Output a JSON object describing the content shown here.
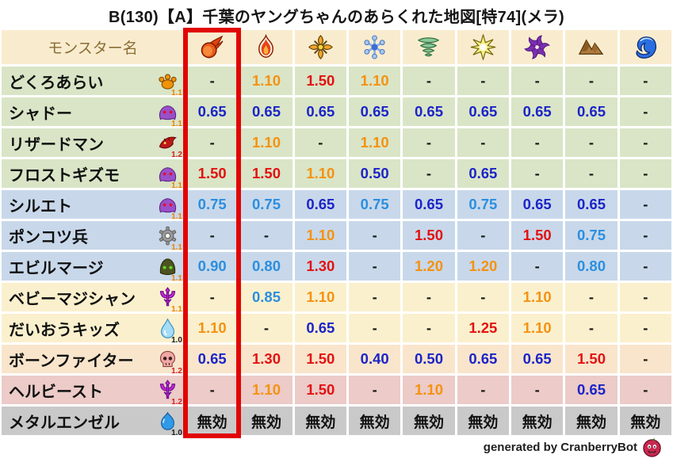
{
  "chart_data": {
    "type": "table",
    "title": "B(130)【A】千葉のヤングちゃんのあらくれた地図[特74](メラ)",
    "name_header": "モンスター名",
    "highlighted_column_index": 0,
    "element_columns": [
      {
        "icon": "fireball-icon",
        "highlighted": true
      },
      {
        "icon": "flame-icon"
      },
      {
        "icon": "burst-icon"
      },
      {
        "icon": "snowflake-icon"
      },
      {
        "icon": "tornado-icon"
      },
      {
        "icon": "spark-icon"
      },
      {
        "icon": "pinwheel-icon"
      },
      {
        "icon": "mountain-icon"
      },
      {
        "icon": "wave-icon"
      }
    ],
    "rows": [
      {
        "name": "どくろあらい",
        "icon": "paw-icon",
        "badge": "1.1",
        "badge_color": "orange",
        "row_color": "green",
        "values": [
          "-",
          "1.10",
          "1.50",
          "1.10",
          "-",
          "-",
          "-",
          "-",
          "-"
        ]
      },
      {
        "name": "シャドー",
        "icon": "ghost-icon",
        "badge": "1.1",
        "badge_color": "orange",
        "row_color": "green",
        "values": [
          "0.65",
          "0.65",
          "0.65",
          "0.65",
          "0.65",
          "0.65",
          "0.65",
          "0.65",
          "-"
        ]
      },
      {
        "name": "リザードマン",
        "icon": "dragon-icon",
        "badge": "1.2",
        "badge_color": "red",
        "row_color": "green",
        "values": [
          "-",
          "1.10",
          "-",
          "1.10",
          "-",
          "-",
          "-",
          "-",
          "-"
        ]
      },
      {
        "name": "フロストギズモ",
        "icon": "ghost-icon",
        "badge": "1.1",
        "badge_color": "orange",
        "row_color": "green",
        "values": [
          "1.50",
          "1.50",
          "1.10",
          "0.50",
          "-",
          "0.65",
          "-",
          "-",
          "-"
        ]
      },
      {
        "name": "シルエト",
        "icon": "ghost-icon",
        "badge": "1.1",
        "badge_color": "orange",
        "row_color": "blue",
        "values": [
          "0.75",
          "0.75",
          "0.65",
          "0.75",
          "0.65",
          "0.75",
          "0.65",
          "0.65",
          "-"
        ]
      },
      {
        "name": "ポンコツ兵",
        "icon": "gear-icon",
        "badge": "1.1",
        "badge_color": "orange",
        "row_color": "blue",
        "values": [
          "-",
          "-",
          "1.10",
          "-",
          "1.50",
          "-",
          "1.50",
          "0.75",
          "-"
        ]
      },
      {
        "name": "エビルマージ",
        "icon": "helmet-icon",
        "badge": "1.1",
        "badge_color": "orange",
        "row_color": "blue",
        "values": [
          "0.90",
          "0.80",
          "1.30",
          "-",
          "1.20",
          "1.20",
          "-",
          "0.80",
          "-"
        ]
      },
      {
        "name": "ベビーマジシャン",
        "icon": "trident-icon",
        "badge": "1.1",
        "badge_color": "orange",
        "row_color": "cream",
        "values": [
          "-",
          "0.85",
          "1.10",
          "-",
          "-",
          "-",
          "1.10",
          "-",
          "-"
        ]
      },
      {
        "name": "だいおうキッズ",
        "icon": "drop-icon",
        "badge": "1.0",
        "badge_color": "black",
        "row_color": "cream",
        "values": [
          "1.10",
          "-",
          "0.65",
          "-",
          "-",
          "1.25",
          "1.10",
          "-",
          "-"
        ]
      },
      {
        "name": "ボーンファイター",
        "icon": "skull-icon",
        "badge": "1.2",
        "badge_color": "red",
        "row_color": "peach",
        "values": [
          "0.65",
          "1.30",
          "1.50",
          "0.40",
          "0.50",
          "0.65",
          "0.65",
          "1.50",
          "-"
        ]
      },
      {
        "name": "ヘルビースト",
        "icon": "trident-icon",
        "badge": "1.2",
        "badge_color": "red",
        "row_color": "pink",
        "values": [
          "-",
          "1.10",
          "1.50",
          "-",
          "1.10",
          "-",
          "-",
          "0.65",
          "-"
        ]
      },
      {
        "name": "メタルエンゼル",
        "icon": "slime-icon",
        "badge": "1.0",
        "badge_color": "black",
        "row_color": "gray",
        "values": [
          "無効",
          "無効",
          "無効",
          "無効",
          "無効",
          "無効",
          "無効",
          "無効",
          "無効"
        ]
      }
    ]
  },
  "footer": {
    "credit": "generated by CranberryBot",
    "icon": "cranberry-bot-icon"
  },
  "colors": {
    "highlight_box": "#e10505",
    "header_bg": "#f9ecce",
    "header_text": "#8a6d35",
    "value_strong_resist_blue": "#1c24c8",
    "value_mild_resist_blue": "#2b8fe0",
    "value_weak_orange": "#f59211",
    "value_very_weak_red": "#e31212",
    "row_green": "#d9e5c6",
    "row_blue": "#c8d8ea",
    "row_cream": "#fbf0cd",
    "row_peach": "#f9e5cb",
    "row_pink": "#eccbc8",
    "row_gray": "#c9c9c9"
  }
}
